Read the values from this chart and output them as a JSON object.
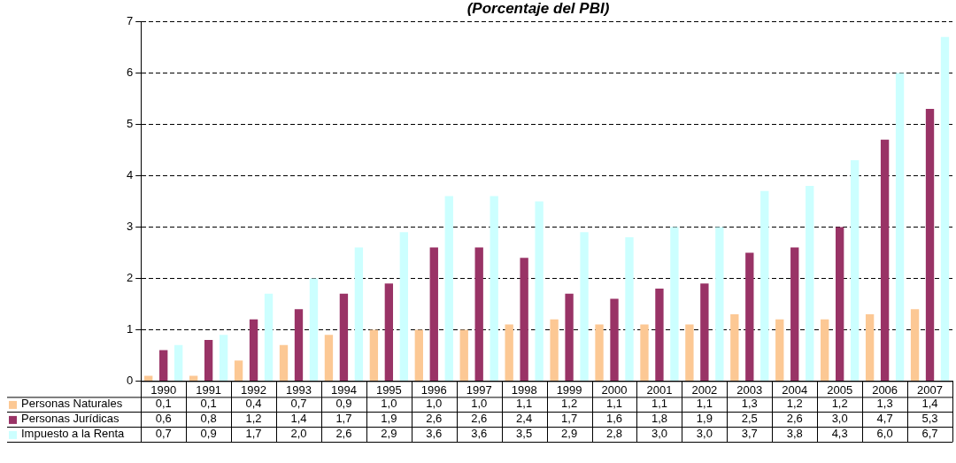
{
  "chart_data": {
    "type": "bar",
    "title": "(Porcentaje del PBI)",
    "categories": [
      "1990",
      "1991",
      "1992",
      "1993",
      "1994",
      "1995",
      "1996",
      "1997",
      "1998",
      "1999",
      "2000",
      "2001",
      "2002",
      "2003",
      "2004",
      "2005",
      "2006",
      "2007"
    ],
    "series": [
      {
        "name": "Personas Naturales",
        "color": "#fcc894",
        "values": [
          0.1,
          0.1,
          0.4,
          0.7,
          0.9,
          1.0,
          1.0,
          1.0,
          1.1,
          1.2,
          1.1,
          1.1,
          1.1,
          1.3,
          1.2,
          1.2,
          1.3,
          1.4
        ],
        "value_labels": [
          "0,1",
          "0,1",
          "0,4",
          "0,7",
          "0,9",
          "1,0",
          "1,0",
          "1,0",
          "1,1",
          "1,2",
          "1,1",
          "1,1",
          "1,1",
          "1,3",
          "1,2",
          "1,2",
          "1,3",
          "1,4"
        ]
      },
      {
        "name": "Personas Jurídicas",
        "color": "#993366",
        "values": [
          0.6,
          0.8,
          1.2,
          1.4,
          1.7,
          1.9,
          2.6,
          2.6,
          2.4,
          1.7,
          1.6,
          1.8,
          1.9,
          2.5,
          2.6,
          3.0,
          4.7,
          5.3
        ],
        "value_labels": [
          "0,6",
          "0,8",
          "1,2",
          "1,4",
          "1,7",
          "1,9",
          "2,6",
          "2,6",
          "2,4",
          "1,7",
          "1,6",
          "1,8",
          "1,9",
          "2,5",
          "2,6",
          "3,0",
          "4,7",
          "5,3"
        ]
      },
      {
        "name": "Impuesto a la Renta",
        "color": "#ccffff",
        "values": [
          0.7,
          0.9,
          1.7,
          2.0,
          2.6,
          2.9,
          3.6,
          3.6,
          3.5,
          2.9,
          2.8,
          3.0,
          3.0,
          3.7,
          3.8,
          4.3,
          6.0,
          6.7
        ],
        "value_labels": [
          "0,7",
          "0,9",
          "1,7",
          "2,0",
          "2,6",
          "2,9",
          "3,6",
          "3,6",
          "3,5",
          "2,9",
          "2,8",
          "3,0",
          "3,0",
          "3,7",
          "3,8",
          "4,3",
          "6,0",
          "6,7"
        ]
      }
    ],
    "ylim": [
      0,
      7
    ],
    "yticks": [
      0,
      1,
      2,
      3,
      4,
      5,
      6,
      7
    ],
    "grid": "y",
    "legend": "bottom"
  }
}
